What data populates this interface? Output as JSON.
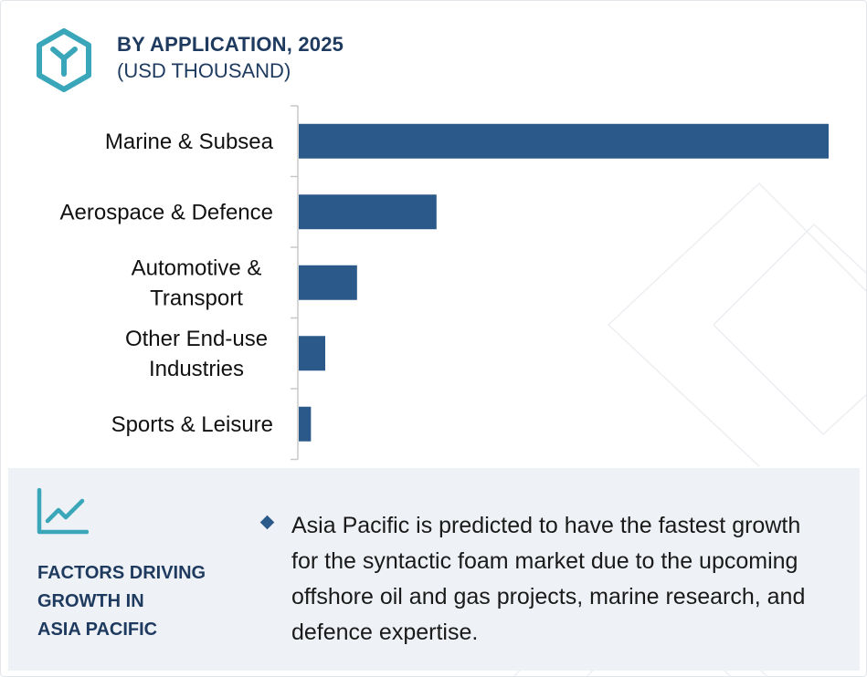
{
  "header": {
    "title": "BY APPLICATION, 2025",
    "subtitle": "(USD THOUSAND)",
    "icon": "hexagon-logo-icon"
  },
  "chart_data": {
    "type": "bar",
    "orientation": "horizontal",
    "title": "BY APPLICATION, 2025",
    "subtitle": "(USD THOUSAND)",
    "categories": [
      [
        "Marine & Subsea"
      ],
      [
        "Aerospace & Defence"
      ],
      [
        "Automotive &",
        "Transport"
      ],
      [
        "Other End-use",
        "Industries"
      ],
      [
        "Sports & Leisure"
      ]
    ],
    "values": [
      100,
      26,
      11,
      5,
      2.3
    ],
    "bar_color": "#2b5a8a",
    "xlim": [
      0,
      100
    ],
    "grid": false,
    "legend": "none"
  },
  "factors": {
    "icon": "trend-line-icon",
    "title_lines": [
      "FACTORS DRIVING",
      "GROWTH IN",
      "ASIA PACIFIC"
    ],
    "bullet": "Asia Pacific is predicted to have the fastest growth for the syntactic foam market due to the upcoming offshore oil and gas projects, marine research, and defence expertise.",
    "bullet_icon": "diamond-bullet-icon"
  },
  "colors": {
    "accent": "#3aa6b9",
    "navy": "#1e3a5f",
    "bar": "#2b5a8a",
    "panel": "#eef1f5"
  }
}
